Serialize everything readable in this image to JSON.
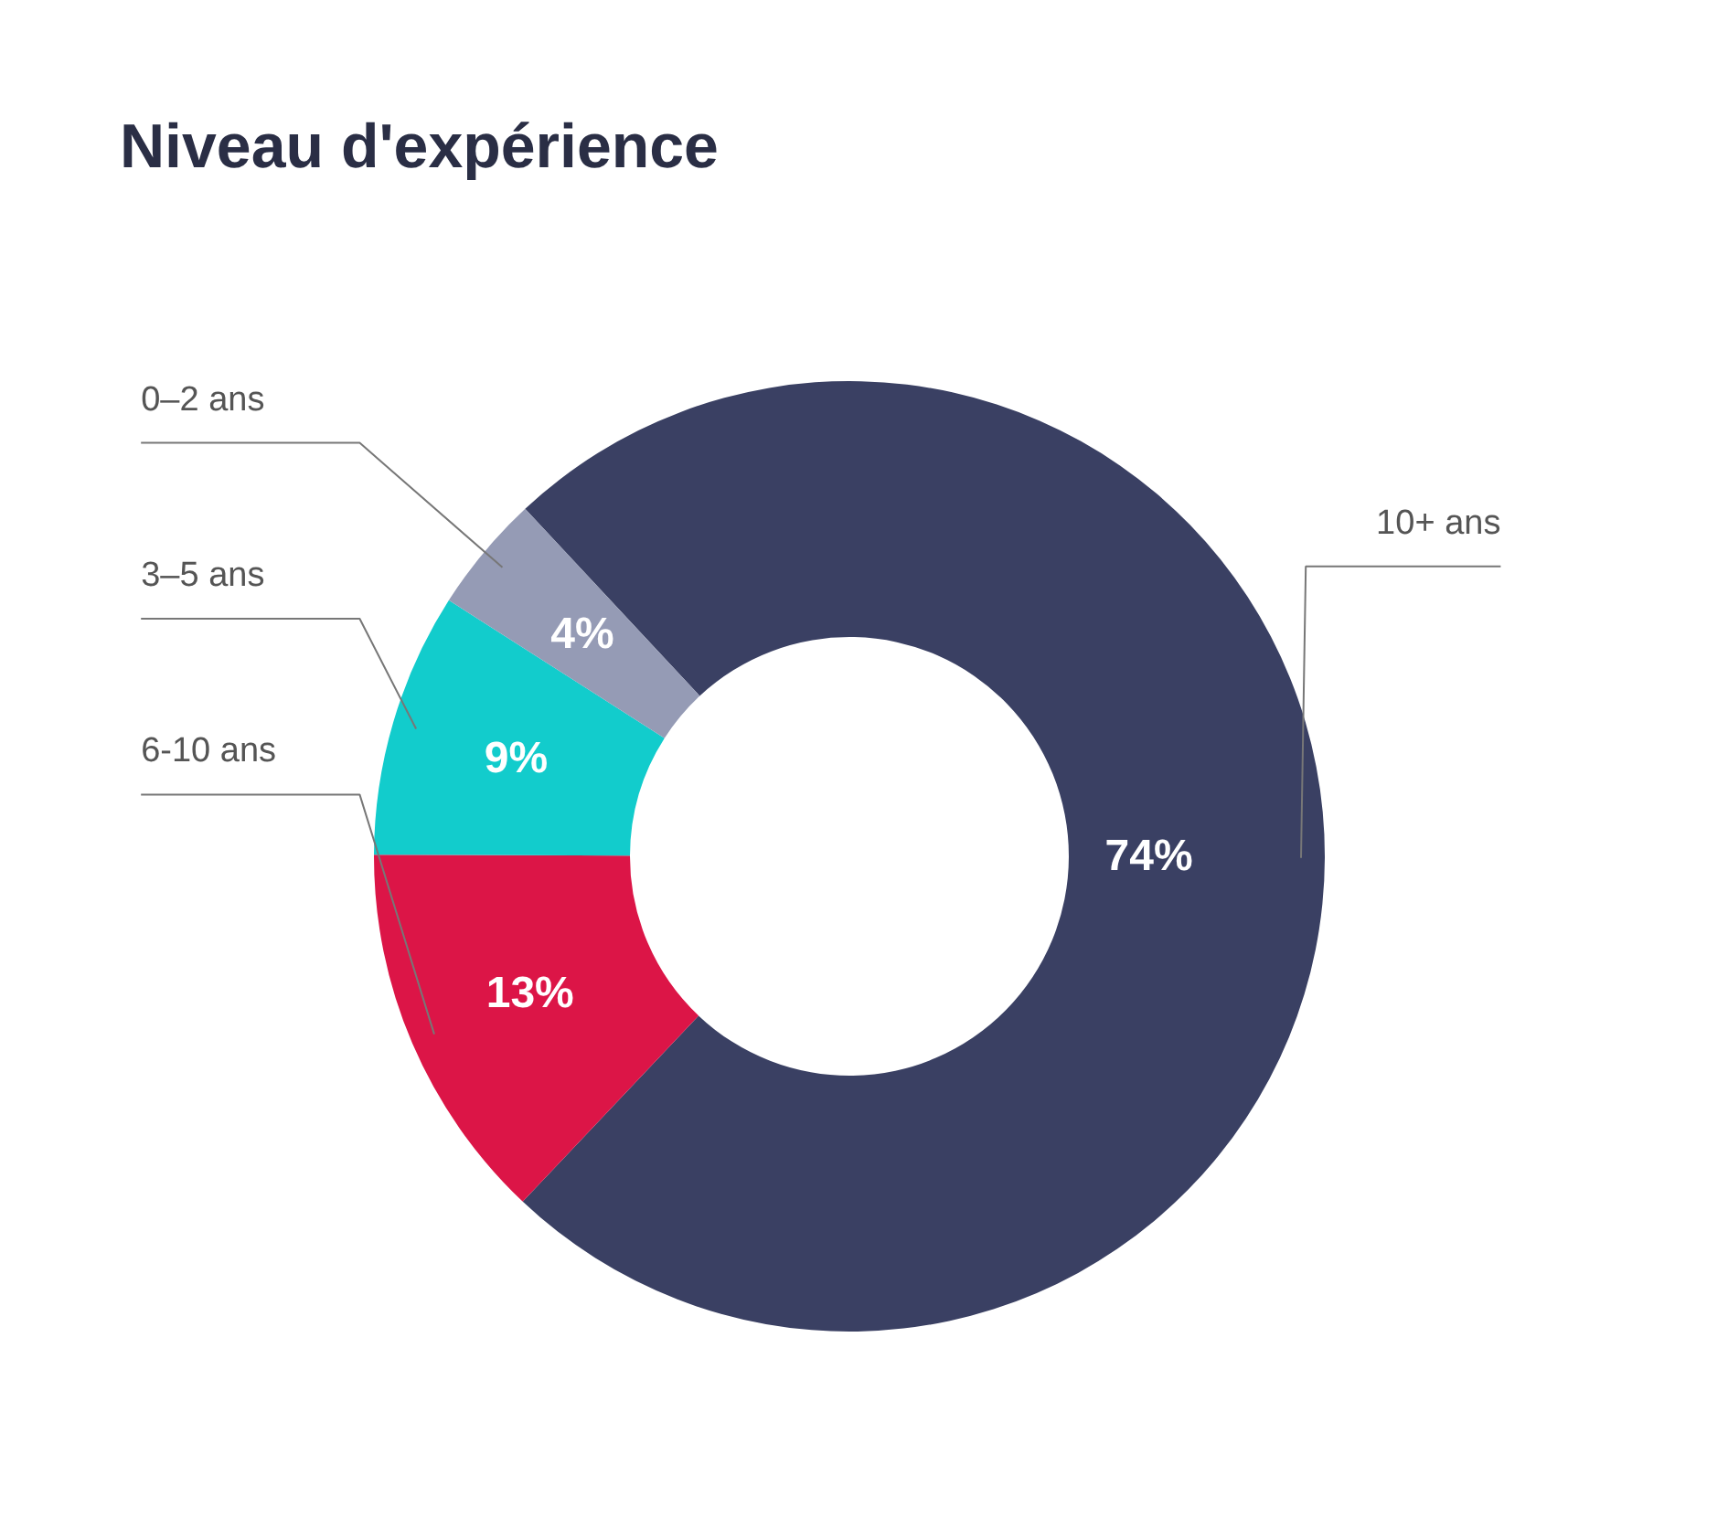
{
  "chart_data": {
    "type": "donut",
    "title": "Niveau d'expérience",
    "categories": [
      "10+ ans",
      "6-10 ans",
      "3–5 ans",
      "0–2 ans"
    ],
    "values": [
      74,
      13,
      9,
      4
    ],
    "colors": [
      "#3a4063",
      "#dc1547",
      "#12cccc",
      "#959bb5"
    ],
    "value_labels": [
      "74%",
      "13%",
      "9%",
      "4%"
    ]
  }
}
